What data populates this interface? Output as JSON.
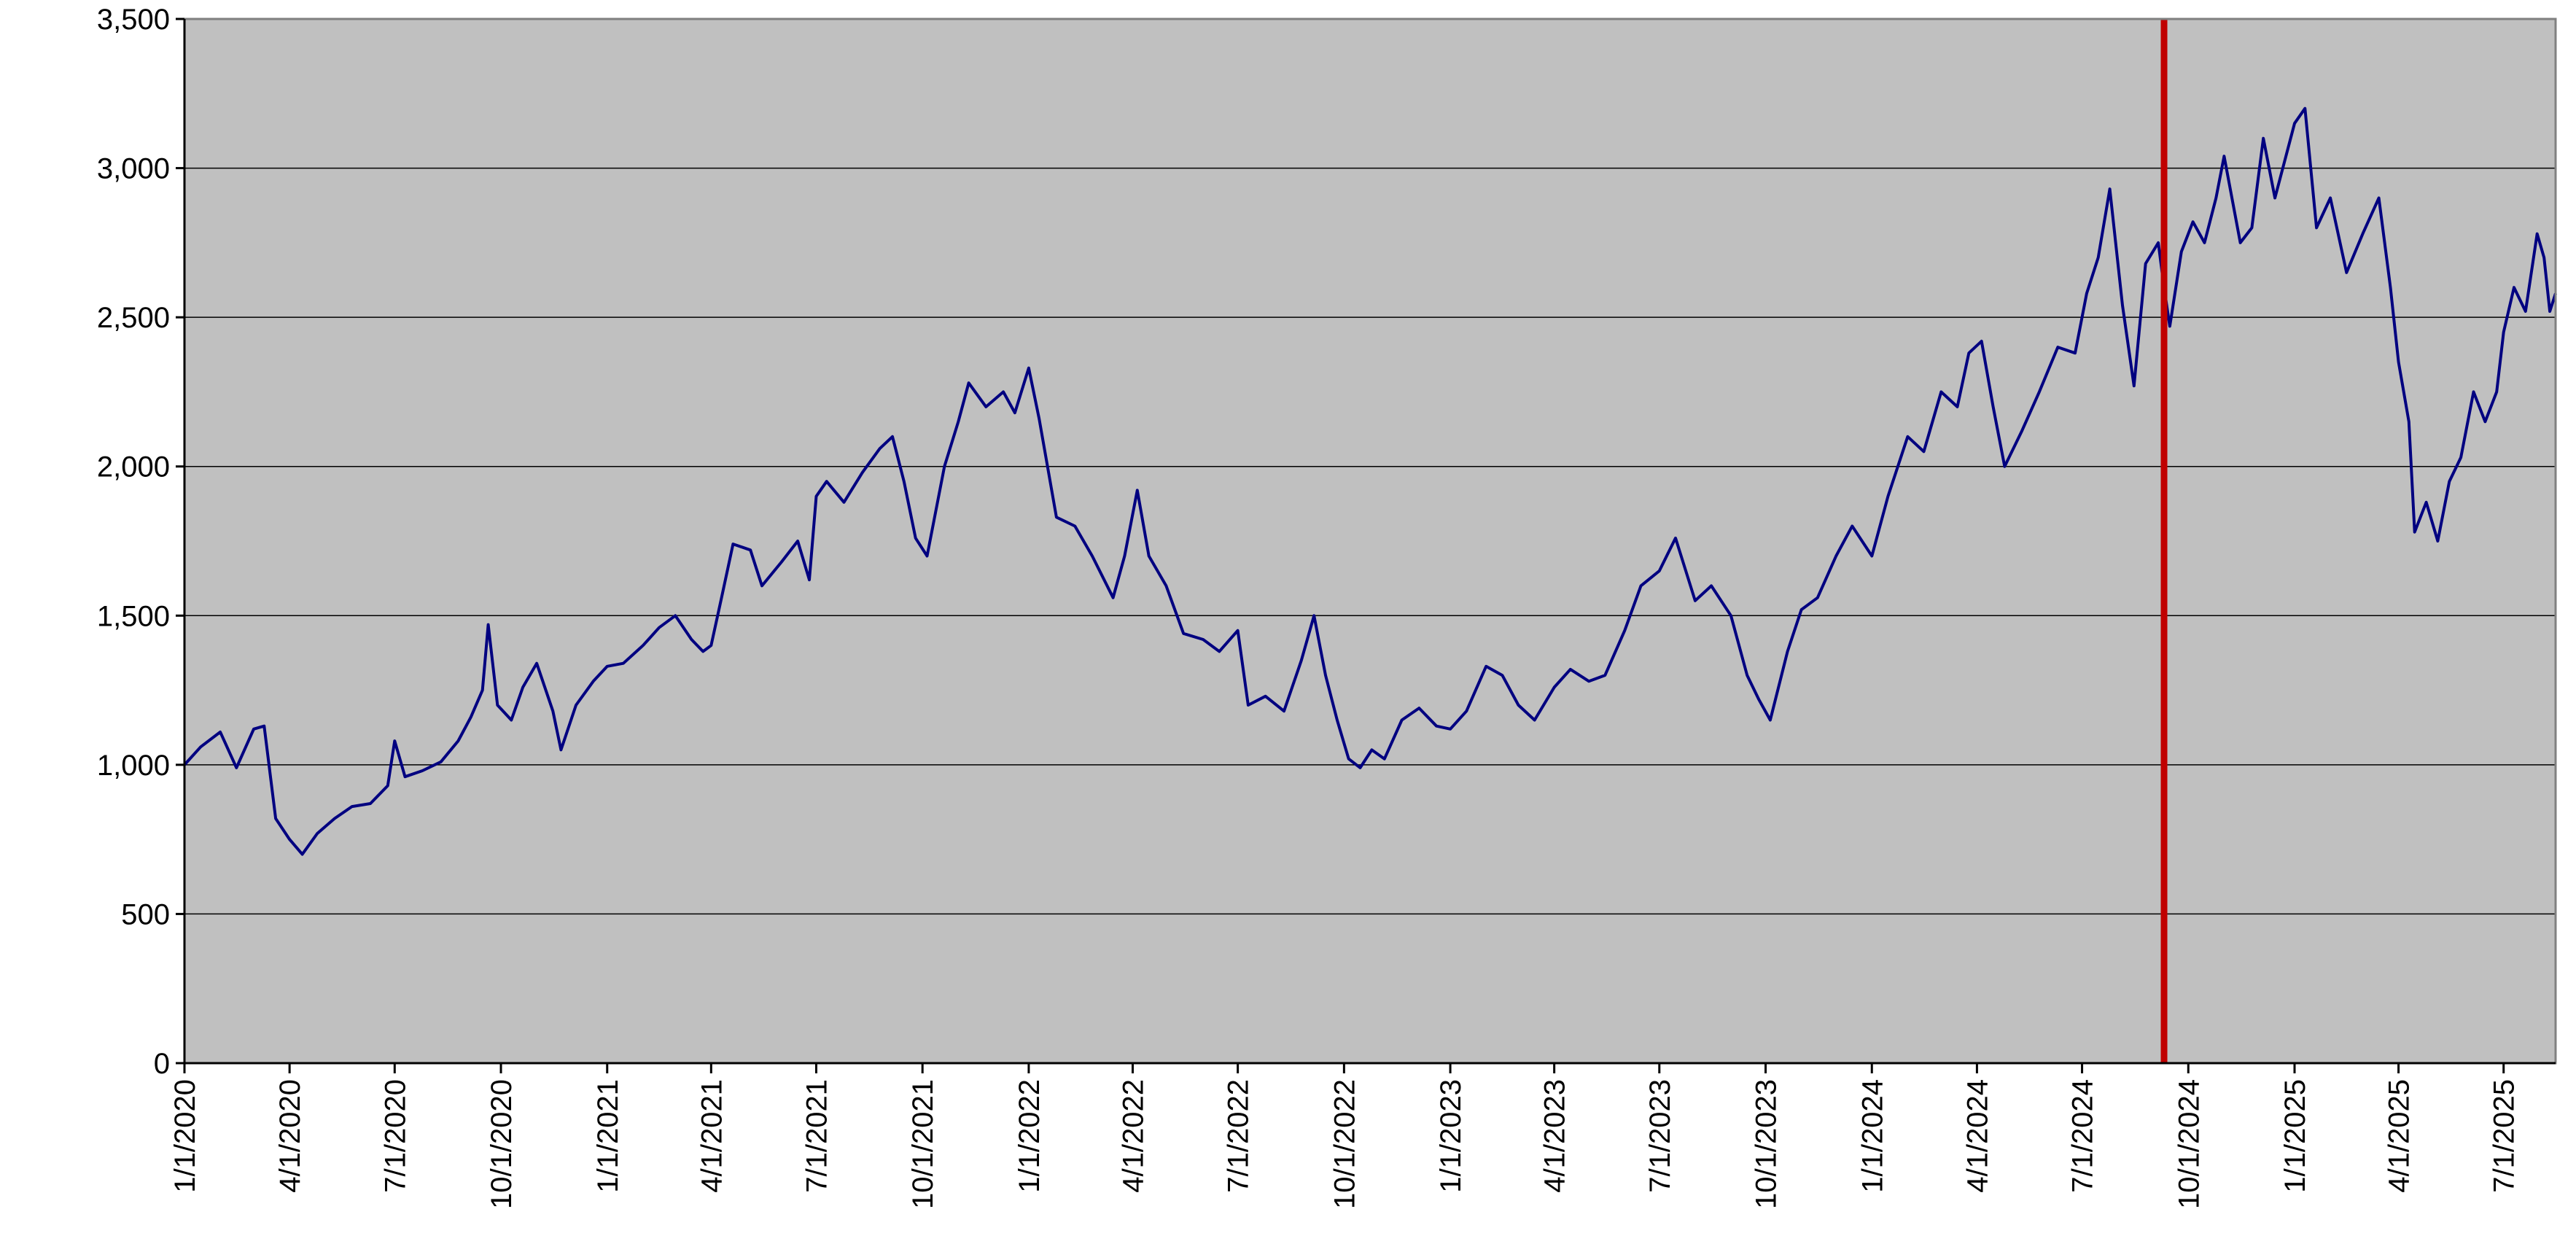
{
  "chart_data": {
    "type": "line",
    "title": "",
    "xlabel": "",
    "ylabel": "",
    "x_range": [
      "1/1/2020",
      "8/15/2025"
    ],
    "ylim": [
      0,
      3500
    ],
    "y_ticks": [
      0,
      500,
      1000,
      1500,
      2000,
      2500,
      3000,
      3500
    ],
    "y_tick_labels": [
      "0",
      "500",
      "1,000",
      "1,500",
      "2,000",
      "2,500",
      "3,000",
      "3,500"
    ],
    "x_ticks": [
      "1/1/2020",
      "4/1/2020",
      "7/1/2020",
      "10/1/2020",
      "1/1/2021",
      "4/1/2021",
      "7/1/2021",
      "10/1/2021",
      "1/1/2022",
      "4/1/2022",
      "7/1/2022",
      "10/1/2022",
      "1/1/2023",
      "4/1/2023",
      "7/1/2023",
      "10/1/2023",
      "1/1/2024",
      "4/1/2024",
      "7/1/2024",
      "10/1/2024",
      "1/1/2025",
      "4/1/2025",
      "7/1/2025"
    ],
    "grid": true,
    "plot_background": "#c0c0c0",
    "series": [
      {
        "color": "#000080",
        "points": [
          [
            "1/1/2020",
            1000
          ],
          [
            "1/15/2020",
            1060
          ],
          [
            "2/1/2020",
            1110
          ],
          [
            "2/15/2020",
            990
          ],
          [
            "3/1/2020",
            1120
          ],
          [
            "3/10/2020",
            1130
          ],
          [
            "3/20/2020",
            820
          ],
          [
            "4/1/2020",
            750
          ],
          [
            "4/12/2020",
            700
          ],
          [
            "4/25/2020",
            770
          ],
          [
            "5/10/2020",
            820
          ],
          [
            "5/25/2020",
            860
          ],
          [
            "6/10/2020",
            870
          ],
          [
            "6/25/2020",
            930
          ],
          [
            "7/1/2020",
            1080
          ],
          [
            "7/10/2020",
            960
          ],
          [
            "7/25/2020",
            980
          ],
          [
            "8/10/2020",
            1010
          ],
          [
            "8/25/2020",
            1080
          ],
          [
            "9/5/2020",
            1160
          ],
          [
            "9/15/2020",
            1250
          ],
          [
            "9/20/2020",
            1470
          ],
          [
            "9/28/2020",
            1200
          ],
          [
            "10/10/2020",
            1150
          ],
          [
            "10/20/2020",
            1260
          ],
          [
            "11/1/2020",
            1340
          ],
          [
            "11/15/2020",
            1180
          ],
          [
            "11/22/2020",
            1050
          ],
          [
            "12/5/2020",
            1200
          ],
          [
            "12/20/2020",
            1280
          ],
          [
            "1/1/2021",
            1330
          ],
          [
            "1/15/2021",
            1340
          ],
          [
            "2/1/2021",
            1400
          ],
          [
            "2/15/2021",
            1460
          ],
          [
            "3/1/2021",
            1500
          ],
          [
            "3/15/2021",
            1420
          ],
          [
            "3/25/2021",
            1380
          ],
          [
            "4/1/2021",
            1400
          ],
          [
            "4/10/2021",
            1560
          ],
          [
            "4/20/2021",
            1740
          ],
          [
            "5/5/2021",
            1720
          ],
          [
            "5/15/2021",
            1600
          ],
          [
            "6/1/2021",
            1680
          ],
          [
            "6/15/2021",
            1750
          ],
          [
            "6/25/2021",
            1620
          ],
          [
            "7/1/2021",
            1900
          ],
          [
            "7/10/2021",
            1950
          ],
          [
            "7/25/2021",
            1880
          ],
          [
            "8/10/2021",
            1980
          ],
          [
            "8/25/2021",
            2060
          ],
          [
            "9/5/2021",
            2100
          ],
          [
            "9/15/2021",
            1950
          ],
          [
            "9/25/2021",
            1760
          ],
          [
            "10/5/2021",
            1700
          ],
          [
            "10/20/2021",
            2000
          ],
          [
            "11/1/2021",
            2150
          ],
          [
            "11/10/2021",
            2280
          ],
          [
            "11/25/2021",
            2200
          ],
          [
            "12/10/2021",
            2250
          ],
          [
            "12/20/2021",
            2180
          ],
          [
            "1/1/2022",
            2330
          ],
          [
            "1/10/2022",
            2160
          ],
          [
            "1/25/2022",
            1830
          ],
          [
            "2/10/2022",
            1800
          ],
          [
            "2/25/2022",
            1700
          ],
          [
            "3/15/2022",
            1560
          ],
          [
            "3/25/2022",
            1700
          ],
          [
            "4/5/2022",
            1920
          ],
          [
            "4/15/2022",
            1700
          ],
          [
            "4/30/2022",
            1600
          ],
          [
            "5/15/2022",
            1440
          ],
          [
            "6/1/2022",
            1420
          ],
          [
            "6/15/2022",
            1380
          ],
          [
            "7/1/2022",
            1450
          ],
          [
            "7/10/2022",
            1200
          ],
          [
            "7/25/2022",
            1230
          ],
          [
            "8/10/2022",
            1180
          ],
          [
            "8/25/2022",
            1350
          ],
          [
            "9/5/2022",
            1500
          ],
          [
            "9/15/2022",
            1300
          ],
          [
            "9/25/2022",
            1150
          ],
          [
            "10/5/2022",
            1020
          ],
          [
            "10/15/2022",
            990
          ],
          [
            "10/25/2022",
            1050
          ],
          [
            "11/5/2022",
            1020
          ],
          [
            "11/20/2022",
            1150
          ],
          [
            "12/5/2022",
            1190
          ],
          [
            "12/20/2022",
            1130
          ],
          [
            "1/1/2023",
            1120
          ],
          [
            "1/15/2023",
            1180
          ],
          [
            "2/1/2023",
            1330
          ],
          [
            "2/15/2023",
            1300
          ],
          [
            "3/1/2023",
            1200
          ],
          [
            "3/15/2023",
            1150
          ],
          [
            "4/1/2023",
            1260
          ],
          [
            "4/15/2023",
            1320
          ],
          [
            "5/1/2023",
            1280
          ],
          [
            "5/15/2023",
            1300
          ],
          [
            "6/1/2023",
            1450
          ],
          [
            "6/15/2023",
            1600
          ],
          [
            "7/1/2023",
            1650
          ],
          [
            "7/15/2023",
            1760
          ],
          [
            "8/1/2023",
            1550
          ],
          [
            "8/15/2023",
            1600
          ],
          [
            "9/1/2023",
            1500
          ],
          [
            "9/15/2023",
            1300
          ],
          [
            "9/25/2023",
            1220
          ],
          [
            "10/5/2023",
            1150
          ],
          [
            "10/20/2023",
            1380
          ],
          [
            "11/1/2023",
            1520
          ],
          [
            "11/15/2023",
            1560
          ],
          [
            "12/1/2023",
            1700
          ],
          [
            "12/15/2023",
            1800
          ],
          [
            "1/1/2024",
            1700
          ],
          [
            "1/15/2024",
            1900
          ],
          [
            "2/1/2024",
            2100
          ],
          [
            "2/15/2024",
            2050
          ],
          [
            "3/1/2024",
            2250
          ],
          [
            "3/15/2024",
            2200
          ],
          [
            "3/25/2024",
            2380
          ],
          [
            "4/5/2024",
            2420
          ],
          [
            "4/15/2024",
            2200
          ],
          [
            "4/25/2024",
            2000
          ],
          [
            "5/10/2024",
            2120
          ],
          [
            "5/25/2024",
            2250
          ],
          [
            "6/10/2024",
            2400
          ],
          [
            "6/25/2024",
            2380
          ],
          [
            "7/5/2024",
            2580
          ],
          [
            "7/15/2024",
            2700
          ],
          [
            "7/25/2024",
            2930
          ],
          [
            "8/5/2024",
            2540
          ],
          [
            "8/15/2024",
            2270
          ],
          [
            "8/25/2024",
            2680
          ],
          [
            "9/5/2024",
            2750
          ],
          [
            "9/10/2024",
            2600
          ],
          [
            "9/15/2024",
            2470
          ],
          [
            "9/25/2024",
            2720
          ],
          [
            "10/5/2024",
            2820
          ],
          [
            "10/15/2024",
            2750
          ],
          [
            "10/25/2024",
            2900
          ],
          [
            "11/1/2024",
            3040
          ],
          [
            "11/15/2024",
            2750
          ],
          [
            "11/25/2024",
            2800
          ],
          [
            "12/5/2024",
            3100
          ],
          [
            "12/15/2024",
            2900
          ],
          [
            "1/1/2025",
            3150
          ],
          [
            "1/10/2025",
            3200
          ],
          [
            "1/20/2025",
            2800
          ],
          [
            "2/1/2025",
            2900
          ],
          [
            "2/15/2025",
            2650
          ],
          [
            "3/1/2025",
            2780
          ],
          [
            "3/15/2025",
            2900
          ],
          [
            "3/25/2025",
            2600
          ],
          [
            "4/1/2025",
            2350
          ],
          [
            "4/10/2025",
            2150
          ],
          [
            "4/15/2025",
            1780
          ],
          [
            "4/25/2025",
            1880
          ],
          [
            "5/5/2025",
            1750
          ],
          [
            "5/15/2025",
            1950
          ],
          [
            "5/25/2025",
            2030
          ],
          [
            "6/5/2025",
            2250
          ],
          [
            "6/15/2025",
            2150
          ],
          [
            "6/25/2025",
            2250
          ],
          [
            "7/1/2025",
            2450
          ],
          [
            "7/10/2025",
            2600
          ],
          [
            "7/20/2025",
            2520
          ],
          [
            "7/30/2025",
            2780
          ],
          [
            "8/5/2025",
            2700
          ],
          [
            "8/10/2025",
            2520
          ],
          [
            "8/15/2025",
            2580
          ]
        ]
      }
    ],
    "reference_line": {
      "x": "9/10/2024",
      "color": "#c00000"
    }
  }
}
